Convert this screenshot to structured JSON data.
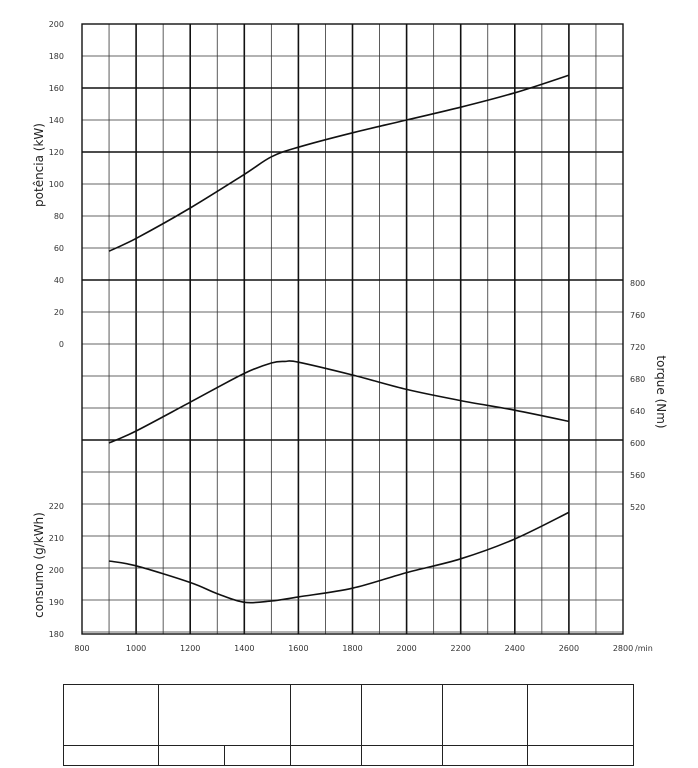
{
  "chart_data": {
    "type": "line",
    "x": [
      900,
      1000,
      1200,
      1400,
      1500,
      1600,
      1800,
      2000,
      2200,
      2400,
      2600
    ],
    "x_ticks": [
      "800",
      "1000",
      "1200",
      "1400",
      "1600",
      "1800",
      "2000",
      "2200",
      "2400",
      "2600",
      "2800"
    ],
    "x_tick_values": [
      800,
      1000,
      1200,
      1400,
      1600,
      1800,
      2000,
      2200,
      2400,
      2600,
      2800
    ],
    "x_unit": "/min",
    "xlim": [
      800,
      2800
    ],
    "panels": [
      {
        "ylabel": "potência (kW)",
        "axis_side": "left",
        "ylim": [
          0,
          200
        ],
        "y_ticks": [
          "200",
          "180",
          "160",
          "140",
          "120",
          "100",
          "80",
          "60",
          "40",
          "20",
          "0"
        ],
        "series": [
          {
            "x": [
              900,
              1000,
              1200,
              1400,
              1500,
              1600,
              1800,
              2000,
              2200,
              2400,
              2600
            ],
            "values": [
              58,
              66,
              85,
              106,
              117,
              123,
              132,
              140,
              148,
              157,
              168
            ]
          }
        ]
      },
      {
        "ylabel": "torque (Nm)",
        "axis_side": "right",
        "ylim": [
          500,
          800
        ],
        "y_ticks": [
          "800",
          "760",
          "720",
          "680",
          "640",
          "600",
          "560",
          "520"
        ],
        "series": [
          {
            "x": [
              900,
              1000,
              1200,
              1400,
              1500,
              1550,
              1600,
              1800,
              2000,
              2200,
              2400,
              2600
            ],
            "values": [
              600,
              615,
              651,
              687,
              700,
              702,
              701,
              685,
              667,
              653,
              641,
              627
            ]
          }
        ]
      },
      {
        "ylabel": "consumo (g/kWh)",
        "axis_side": "left",
        "ylim": [
          180,
          220
        ],
        "y_ticks": [
          "220",
          "210",
          "200",
          "190",
          "180"
        ],
        "series": [
          {
            "x": [
              900,
              1000,
              1200,
              1300,
              1400,
              1500,
              1600,
              1800,
              2000,
              2200,
              2400,
              2600
            ],
            "values": [
              202.8,
              201.3,
              196.1,
              192.6,
              189.9,
              190.3,
              191.6,
              194.3,
              199.2,
              203.5,
              209.7,
              218
            ]
          }
        ]
      }
    ],
    "grid": true
  },
  "table": {
    "row1": [
      "",
      "",
      "",
      "",
      "",
      ""
    ],
    "row2": [
      "",
      "",
      "",
      "",
      "",
      "",
      ""
    ]
  }
}
